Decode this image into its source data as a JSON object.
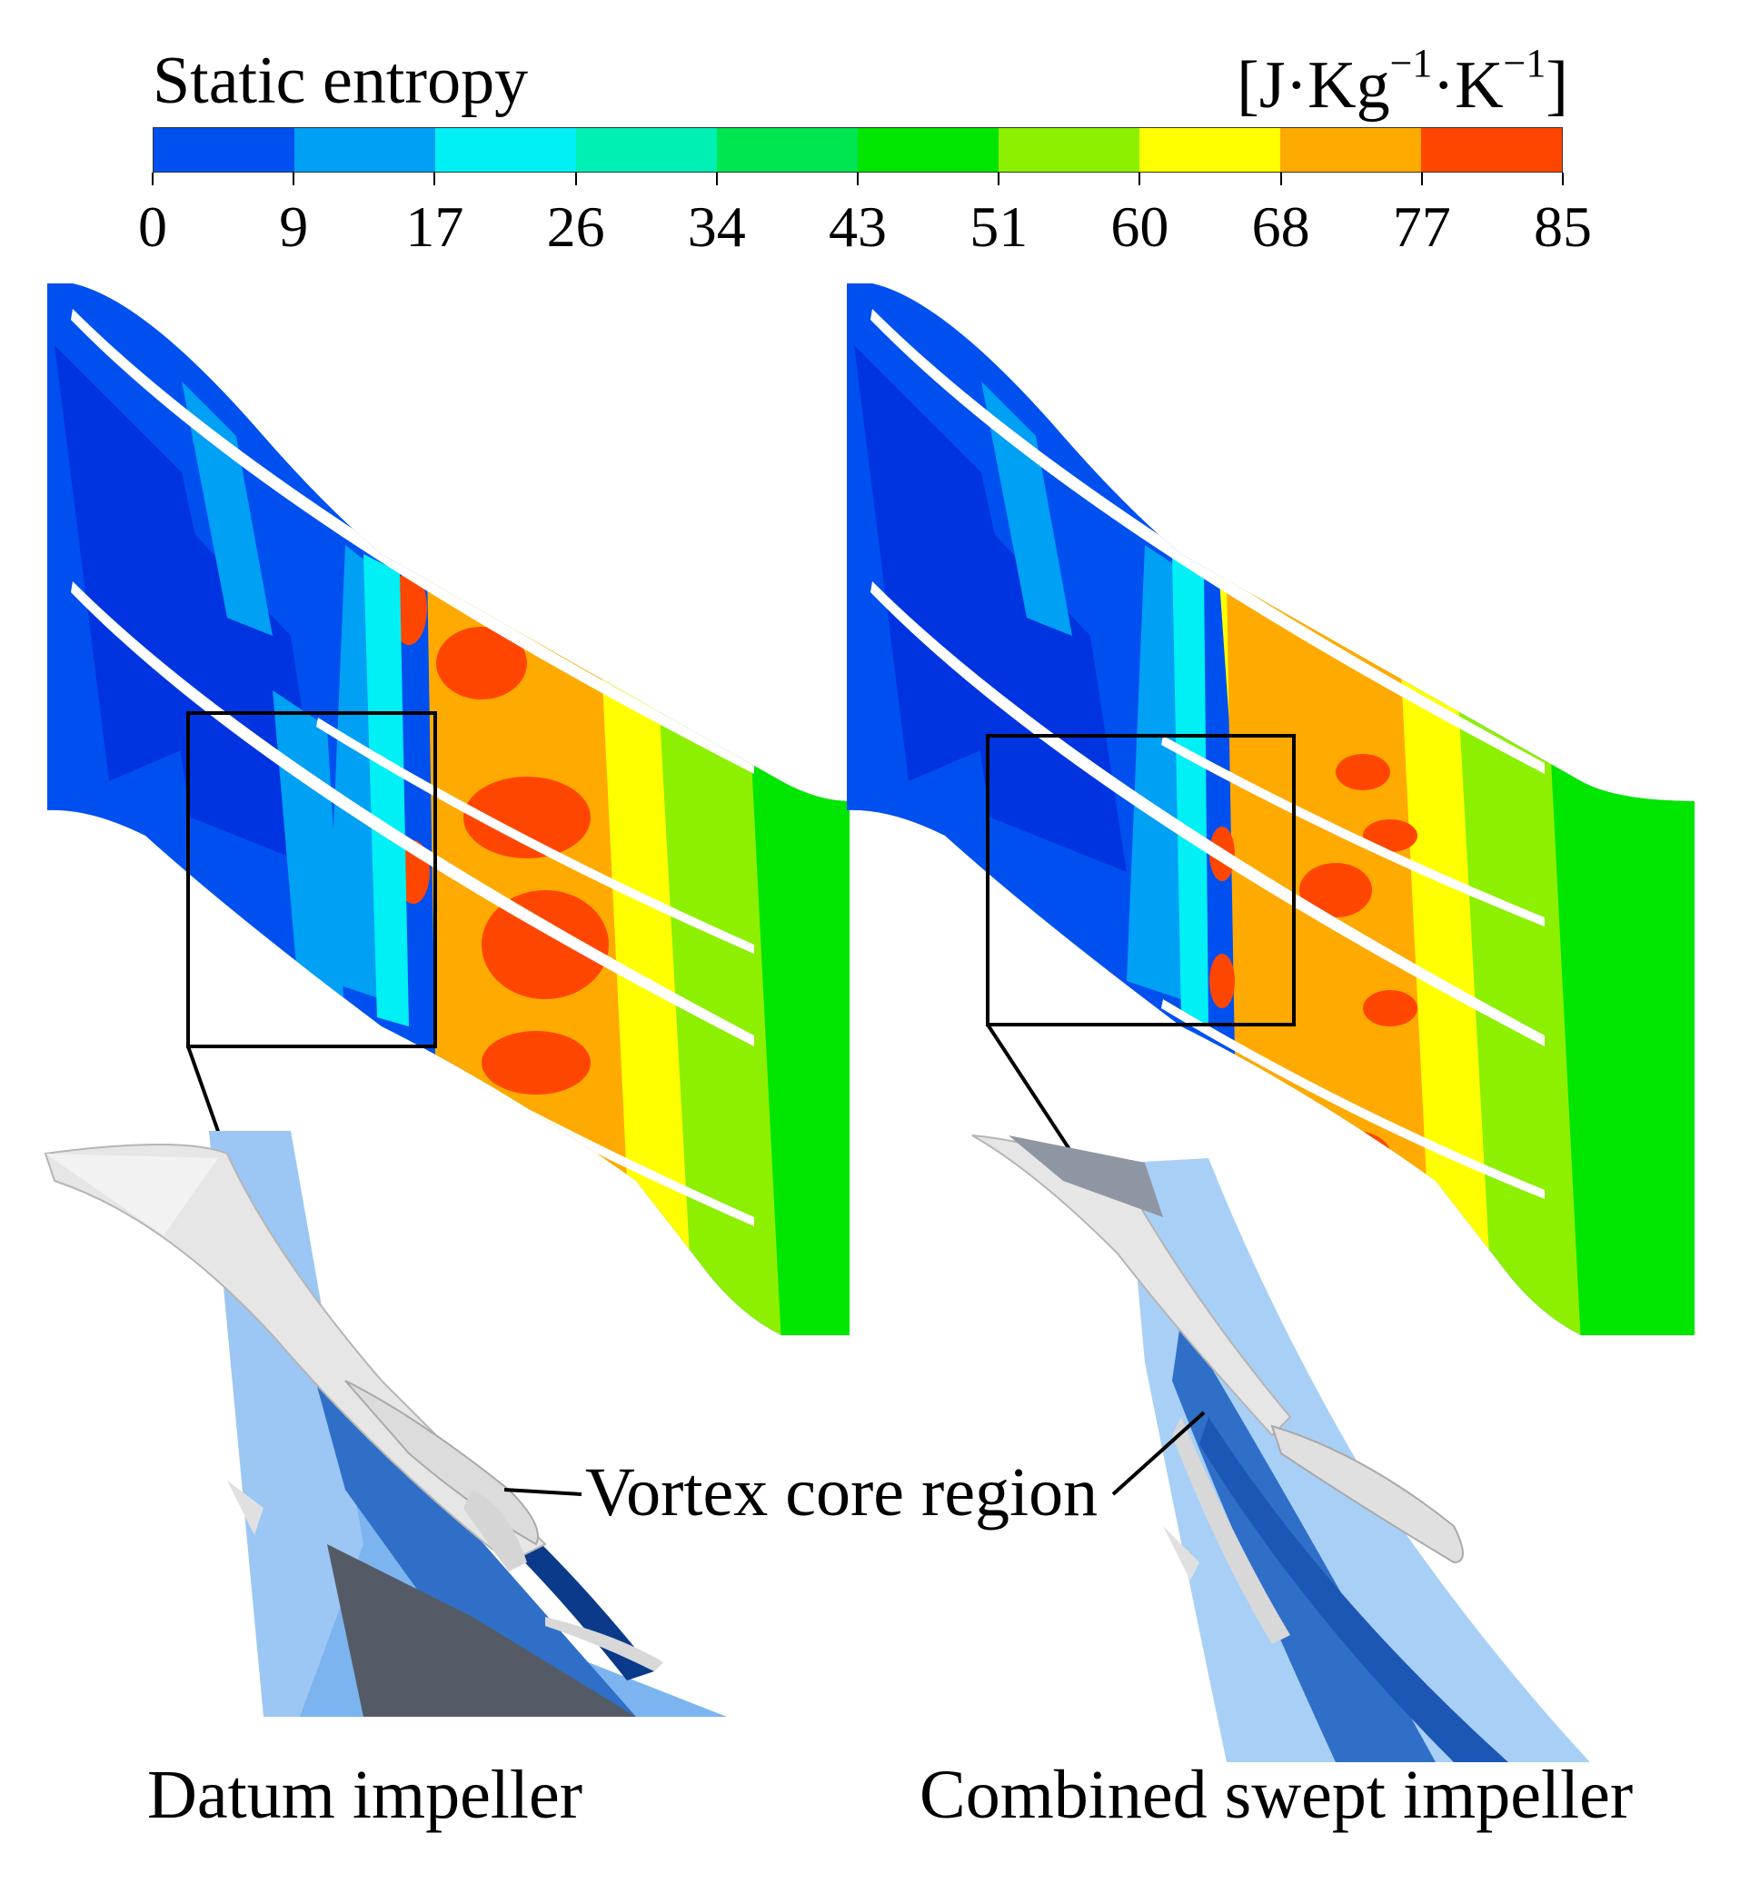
{
  "colorbar": {
    "title": "Static entropy",
    "unit_base": "[J·Kg",
    "unit_exp1": "−1",
    "unit_mid": "·K",
    "unit_exp2": "−1",
    "unit_close": "]",
    "ticks": [
      "0",
      "9",
      "17",
      "26",
      "34",
      "43",
      "51",
      "60",
      "68",
      "77",
      "85"
    ],
    "colors": [
      "#0050f0",
      "#00a0f5",
      "#00f0f5",
      "#00f0b4",
      "#00e650",
      "#00e600",
      "#8cf000",
      "#ffff00",
      "#ffaa00",
      "#ff4600"
    ]
  },
  "annotation": {
    "vortex_label": "Vortex core region"
  },
  "captions": {
    "left": "Datum impeller",
    "right": "Combined swept impeller"
  },
  "colors": {
    "blade": "#ffffff",
    "surface_light": "#7cb4f0",
    "surface_dark": "#2f6fc8",
    "isosurface": "#e6e6e6",
    "box": "#000000"
  }
}
